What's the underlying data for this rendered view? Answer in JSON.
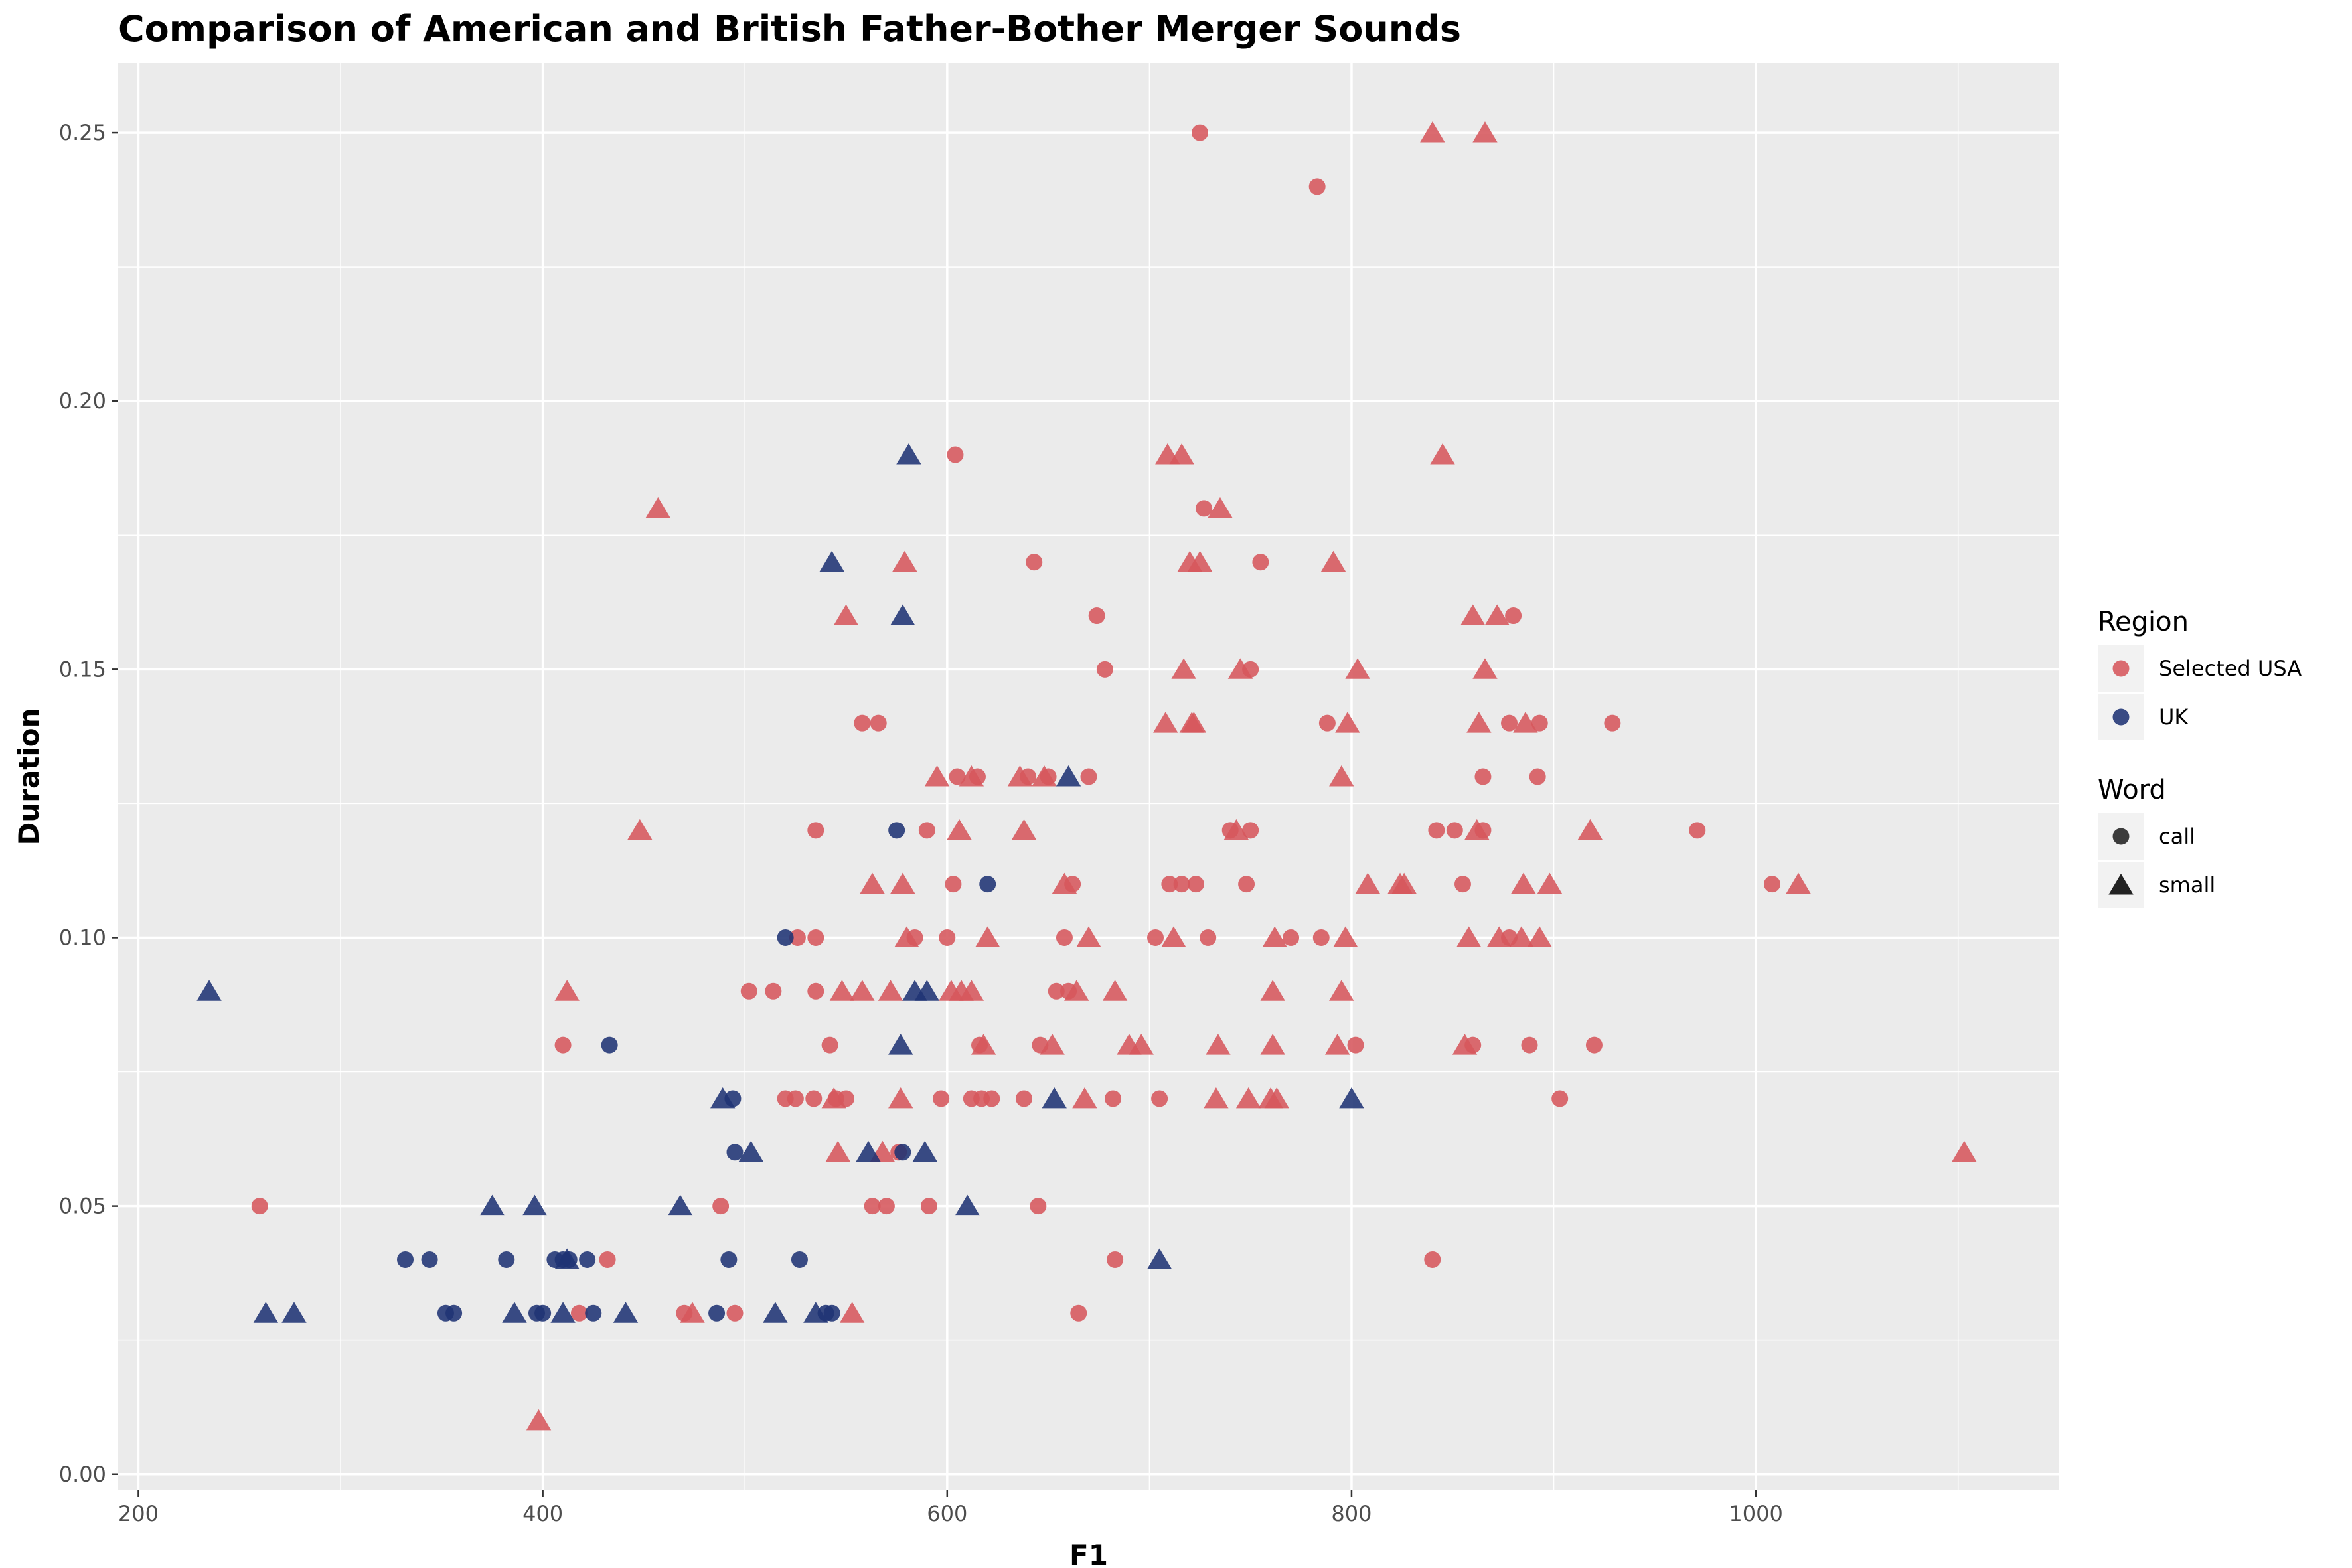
{
  "chart_data": {
    "type": "scatter",
    "title": "Comparison of American and British Father-Bother Merger Sounds",
    "xlabel": "F1",
    "ylabel": "Duration",
    "xlim": [
      190,
      1150
    ],
    "ylim": [
      -0.003,
      0.263
    ],
    "x_ticks": [
      200,
      400,
      600,
      800,
      1000
    ],
    "x_tick_labels": [
      "200",
      "400",
      "600",
      "800",
      "1000"
    ],
    "y_ticks": [
      0,
      0.05,
      0.1,
      0.15,
      0.2,
      0.25
    ],
    "y_tick_labels": [
      "0.00",
      "0.05",
      "0.10",
      "0.15",
      "0.20",
      "0.25"
    ],
    "background": "#ebebeb",
    "grid": true,
    "legend_position": "right",
    "legends": [
      {
        "title": "Region",
        "items": [
          {
            "label": "Selected USA",
            "color": "#d6575c",
            "marker": "circle"
          },
          {
            "label": "UK",
            "color": "#1f3374",
            "marker": "circle"
          }
        ]
      },
      {
        "title": "Word",
        "items": [
          {
            "label": "call",
            "color": "#222222",
            "marker": "circle"
          },
          {
            "label": "small",
            "color": "#222222",
            "marker": "triangle"
          }
        ]
      }
    ],
    "series": [
      {
        "region": "Selected USA",
        "word": "call",
        "color": "#d6575c",
        "marker": "circle",
        "points": [
          [
            260,
            0.05
          ],
          [
            410,
            0.08
          ],
          [
            418,
            0.03
          ],
          [
            432,
            0.04
          ],
          [
            470,
            0.03
          ],
          [
            488,
            0.05
          ],
          [
            495,
            0.03
          ],
          [
            502,
            0.09
          ],
          [
            514,
            0.09
          ],
          [
            520,
            0.07
          ],
          [
            525,
            0.07
          ],
          [
            526,
            0.1
          ],
          [
            534,
            0.07
          ],
          [
            535,
            0.1
          ],
          [
            535,
            0.12
          ],
          [
            535,
            0.09
          ],
          [
            542,
            0.08
          ],
          [
            545,
            0.07
          ],
          [
            550,
            0.07
          ],
          [
            558,
            0.14
          ],
          [
            563,
            0.05
          ],
          [
            566,
            0.14
          ],
          [
            570,
            0.05
          ],
          [
            576,
            0.06
          ],
          [
            584,
            0.1
          ],
          [
            590,
            0.12
          ],
          [
            591,
            0.05
          ],
          [
            597,
            0.07
          ],
          [
            600,
            0.1
          ],
          [
            603,
            0.11
          ],
          [
            604,
            0.19
          ],
          [
            605,
            0.13
          ],
          [
            612,
            0.07
          ],
          [
            615,
            0.13
          ],
          [
            617,
            0.07
          ],
          [
            616,
            0.08
          ],
          [
            622,
            0.07
          ],
          [
            638,
            0.07
          ],
          [
            640,
            0.13
          ],
          [
            643,
            0.17
          ],
          [
            645,
            0.05
          ],
          [
            646,
            0.08
          ],
          [
            650,
            0.13
          ],
          [
            654,
            0.09
          ],
          [
            658,
            0.1
          ],
          [
            660,
            0.09
          ],
          [
            662,
            0.11
          ],
          [
            665,
            0.03
          ],
          [
            670,
            0.13
          ],
          [
            674,
            0.16
          ],
          [
            678,
            0.15
          ],
          [
            682,
            0.07
          ],
          [
            683,
            0.04
          ],
          [
            703,
            0.1
          ],
          [
            705,
            0.07
          ],
          [
            710,
            0.11
          ],
          [
            716,
            0.11
          ],
          [
            723,
            0.11
          ],
          [
            725,
            0.25
          ],
          [
            727,
            0.18
          ],
          [
            729,
            0.1
          ],
          [
            740,
            0.12
          ],
          [
            748,
            0.11
          ],
          [
            750,
            0.12
          ],
          [
            750,
            0.15
          ],
          [
            755,
            0.17
          ],
          [
            770,
            0.1
          ],
          [
            783,
            0.24
          ],
          [
            785,
            0.1
          ],
          [
            788,
            0.14
          ],
          [
            802,
            0.08
          ],
          [
            840,
            0.04
          ],
          [
            842,
            0.12
          ],
          [
            851,
            0.12
          ],
          [
            855,
            0.11
          ],
          [
            860,
            0.08
          ],
          [
            865,
            0.12
          ],
          [
            865,
            0.13
          ],
          [
            878,
            0.1
          ],
          [
            878,
            0.14
          ],
          [
            880,
            0.16
          ],
          [
            888,
            0.08
          ],
          [
            892,
            0.13
          ],
          [
            893,
            0.14
          ],
          [
            903,
            0.07
          ],
          [
            920,
            0.08
          ],
          [
            929,
            0.14
          ],
          [
            971,
            0.12
          ],
          [
            1008,
            0.11
          ]
        ]
      },
      {
        "region": "Selected USA",
        "word": "small",
        "color": "#d6575c",
        "marker": "triangle",
        "points": [
          [
            398,
            0.01
          ],
          [
            412,
            0.09
          ],
          [
            448,
            0.12
          ],
          [
            457,
            0.18
          ],
          [
            474,
            0.03
          ],
          [
            544,
            0.07
          ],
          [
            546,
            0.06
          ],
          [
            548,
            0.09
          ],
          [
            550,
            0.16
          ],
          [
            553,
            0.03
          ],
          [
            558,
            0.09
          ],
          [
            563,
            0.11
          ],
          [
            568,
            0.06
          ],
          [
            572,
            0.09
          ],
          [
            577,
            0.07
          ],
          [
            578,
            0.11
          ],
          [
            579,
            0.17
          ],
          [
            580,
            0.1
          ],
          [
            595,
            0.13
          ],
          [
            602,
            0.09
          ],
          [
            606,
            0.12
          ],
          [
            607,
            0.09
          ],
          [
            612,
            0.09
          ],
          [
            612,
            0.13
          ],
          [
            618,
            0.08
          ],
          [
            620,
            0.1
          ],
          [
            636,
            0.13
          ],
          [
            638,
            0.12
          ],
          [
            648,
            0.13
          ],
          [
            652,
            0.08
          ],
          [
            658,
            0.11
          ],
          [
            664,
            0.09
          ],
          [
            668,
            0.07
          ],
          [
            670,
            0.1
          ],
          [
            683,
            0.09
          ],
          [
            690,
            0.08
          ],
          [
            696,
            0.08
          ],
          [
            708,
            0.14
          ],
          [
            709,
            0.19
          ],
          [
            712,
            0.1
          ],
          [
            716,
            0.19
          ],
          [
            717,
            0.15
          ],
          [
            720,
            0.17
          ],
          [
            721,
            0.14
          ],
          [
            722,
            0.14
          ],
          [
            725,
            0.17
          ],
          [
            733,
            0.07
          ],
          [
            734,
            0.08
          ],
          [
            735,
            0.18
          ],
          [
            743,
            0.12
          ],
          [
            745,
            0.15
          ],
          [
            749,
            0.07
          ],
          [
            760,
            0.07
          ],
          [
            761,
            0.08
          ],
          [
            761,
            0.09
          ],
          [
            762,
            0.1
          ],
          [
            763,
            0.07
          ],
          [
            791,
            0.17
          ],
          [
            793,
            0.08
          ],
          [
            795,
            0.09
          ],
          [
            795,
            0.13
          ],
          [
            797,
            0.1
          ],
          [
            798,
            0.14
          ],
          [
            803,
            0.15
          ],
          [
            808,
            0.11
          ],
          [
            824,
            0.11
          ],
          [
            826,
            0.11
          ],
          [
            840,
            0.25
          ],
          [
            845,
            0.19
          ],
          [
            856,
            0.08
          ],
          [
            858,
            0.1
          ],
          [
            860,
            0.16
          ],
          [
            862,
            0.12
          ],
          [
            863,
            0.14
          ],
          [
            866,
            0.25
          ],
          [
            866,
            0.15
          ],
          [
            872,
            0.16
          ],
          [
            873,
            0.1
          ],
          [
            884,
            0.1
          ],
          [
            885,
            0.11
          ],
          [
            886,
            0.14
          ],
          [
            893,
            0.1
          ],
          [
            898,
            0.11
          ],
          [
            918,
            0.12
          ],
          [
            1021,
            0.11
          ],
          [
            1103,
            0.06
          ]
        ]
      },
      {
        "region": "UK",
        "word": "call",
        "color": "#1f3374",
        "marker": "circle",
        "points": [
          [
            332,
            0.04
          ],
          [
            344,
            0.04
          ],
          [
            352,
            0.03
          ],
          [
            356,
            0.03
          ],
          [
            382,
            0.04
          ],
          [
            397,
            0.03
          ],
          [
            400,
            0.03
          ],
          [
            406,
            0.04
          ],
          [
            410,
            0.04
          ],
          [
            413,
            0.04
          ],
          [
            422,
            0.04
          ],
          [
            425,
            0.03
          ],
          [
            433,
            0.08
          ],
          [
            486,
            0.03
          ],
          [
            492,
            0.04
          ],
          [
            494,
            0.07
          ],
          [
            495,
            0.06
          ],
          [
            520,
            0.1
          ],
          [
            527,
            0.04
          ],
          [
            540,
            0.03
          ],
          [
            543,
            0.03
          ],
          [
            575,
            0.12
          ],
          [
            578,
            0.06
          ],
          [
            620,
            0.11
          ]
        ]
      },
      {
        "region": "UK",
        "word": "small",
        "color": "#1f3374",
        "marker": "triangle",
        "points": [
          [
            235,
            0.09
          ],
          [
            263,
            0.03
          ],
          [
            277,
            0.03
          ],
          [
            375,
            0.05
          ],
          [
            386,
            0.03
          ],
          [
            396,
            0.05
          ],
          [
            410,
            0.03
          ],
          [
            412,
            0.04
          ],
          [
            441,
            0.03
          ],
          [
            468,
            0.05
          ],
          [
            489,
            0.07
          ],
          [
            503,
            0.06
          ],
          [
            515,
            0.03
          ],
          [
            535,
            0.03
          ],
          [
            543,
            0.17
          ],
          [
            561,
            0.06
          ],
          [
            577,
            0.08
          ],
          [
            578,
            0.16
          ],
          [
            581,
            0.19
          ],
          [
            584,
            0.09
          ],
          [
            589,
            0.06
          ],
          [
            590,
            0.09
          ],
          [
            610,
            0.05
          ],
          [
            653,
            0.07
          ],
          [
            660,
            0.13
          ],
          [
            705,
            0.04
          ],
          [
            800,
            0.07
          ]
        ]
      }
    ]
  }
}
